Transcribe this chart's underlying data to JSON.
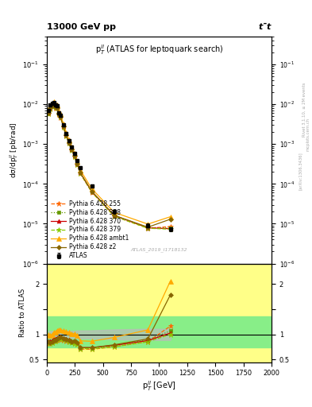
{
  "title_top": "13000 GeV pp",
  "title_top_right": "t¯t",
  "plot_title": "p$_T^{ll}$ (ATLAS for leptoquark search)",
  "xlabel": "p$_T^{ll}$ [GeV]",
  "ylabel_main": "dσ/dp$_T^{ll}$ [pb/rad]",
  "ylabel_ratio": "Ratio to ATLAS",
  "watermark": "ATLAS_2019_I1718132",
  "rivet_label": "Rivet 3.1.10, ≥ 2M events",
  "arxiv_label": "[arXiv:1306.3436]",
  "mcplots_label": "mcplots.cern.ch",
  "atlas_x": [
    17,
    32,
    47,
    62,
    77,
    92,
    107,
    122,
    147,
    172,
    197,
    222,
    247,
    272,
    297,
    400,
    600,
    900,
    1100
  ],
  "atlas_y": [
    0.007,
    0.0095,
    0.0105,
    0.011,
    0.0095,
    0.009,
    0.0062,
    0.0052,
    0.003,
    0.00185,
    0.00122,
    0.00085,
    0.00058,
    0.00038,
    0.00026,
    8.8e-05,
    2.05e-05,
    9e-06,
    7.3e-06
  ],
  "atlas_yerr": [
    0.0005,
    0.0006,
    0.0007,
    0.0007,
    0.0006,
    0.0006,
    0.0004,
    0.0004,
    0.0002,
    0.00013,
    9e-05,
    6e-05,
    4e-05,
    3e-05,
    2e-05,
    7e-06,
    2e-06,
    1e-06,
    8e-07
  ],
  "p255_x": [
    17,
    32,
    47,
    62,
    77,
    92,
    107,
    122,
    147,
    172,
    197,
    222,
    247,
    272,
    297,
    400,
    600,
    900,
    1100
  ],
  "p255_y": [
    0.0058,
    0.0078,
    0.0088,
    0.0095,
    0.0082,
    0.008,
    0.0056,
    0.0047,
    0.00265,
    0.00162,
    0.00105,
    0.00072,
    0.00048,
    0.000305,
    0.000185,
    6.2e-05,
    1.55e-05,
    7.7e-06,
    8.5e-06
  ],
  "p358_x": [
    17,
    32,
    47,
    62,
    77,
    92,
    107,
    122,
    147,
    172,
    197,
    222,
    247,
    272,
    297,
    400,
    600,
    900,
    1100
  ],
  "p358_y": [
    0.006,
    0.008,
    0.009,
    0.0097,
    0.0084,
    0.0082,
    0.0058,
    0.0049,
    0.00275,
    0.00168,
    0.00108,
    0.00073,
    0.0005,
    0.000315,
    0.00019,
    6.4e-05,
    1.6e-05,
    8e-06,
    7.8e-06
  ],
  "p370_x": [
    17,
    32,
    47,
    62,
    77,
    92,
    107,
    122,
    147,
    172,
    197,
    222,
    247,
    272,
    297,
    400,
    600,
    900,
    1100
  ],
  "p370_y": [
    0.0061,
    0.0082,
    0.0093,
    0.01,
    0.0087,
    0.0084,
    0.0059,
    0.005,
    0.0028,
    0.0017,
    0.00109,
    0.00074,
    0.0005,
    0.00032,
    0.000192,
    6.5e-05,
    1.61e-05,
    7.9e-06,
    7.5e-06
  ],
  "p379_x": [
    17,
    32,
    47,
    62,
    77,
    92,
    107,
    122,
    147,
    172,
    197,
    222,
    247,
    272,
    297,
    400,
    600,
    900,
    1100
  ],
  "p379_y": [
    0.0059,
    0.0078,
    0.0088,
    0.0096,
    0.0083,
    0.0081,
    0.0057,
    0.0048,
    0.00269,
    0.00163,
    0.00105,
    0.00071,
    0.00048,
    0.000308,
    0.000187,
    6.3e-05,
    1.55e-05,
    7.7e-06,
    7.3e-06
  ],
  "pambt1_x": [
    17,
    32,
    47,
    62,
    77,
    92,
    107,
    122,
    147,
    172,
    197,
    222,
    247,
    272,
    297,
    400,
    600,
    900,
    1100
  ],
  "pambt1_y": [
    0.007,
    0.0093,
    0.0105,
    0.0114,
    0.0099,
    0.0097,
    0.0068,
    0.0057,
    0.00322,
    0.00196,
    0.00127,
    0.00086,
    0.00059,
    0.000375,
    0.000227,
    7.6e-05,
    1.93e-05,
    9.8e-06,
    1.5e-05
  ],
  "pz2_x": [
    17,
    32,
    47,
    62,
    77,
    92,
    107,
    122,
    147,
    172,
    197,
    222,
    247,
    272,
    297,
    400,
    600,
    900,
    1100
  ],
  "pz2_y": [
    0.006,
    0.008,
    0.009,
    0.0097,
    0.0084,
    0.0082,
    0.0058,
    0.0049,
    0.00275,
    0.00168,
    0.00108,
    0.00073,
    0.0005,
    0.000316,
    0.000192,
    6.5e-05,
    1.63e-05,
    8.2e-06,
    1.3e-05
  ],
  "colors": {
    "atlas": "#000000",
    "p255": "#ff6600",
    "p358": "#669900",
    "p370": "#cc0000",
    "p379": "#88cc00",
    "pambt1": "#ffaa00",
    "pz2": "#886600"
  },
  "bg_yellow": "#ffff88",
  "bg_green": "#88ee88",
  "ylim_main": [
    1e-06,
    0.5
  ],
  "ylim_ratio": [
    0.45,
    2.4
  ],
  "xlim": [
    0,
    2000
  ],
  "ratio_yticks": [
    0.5,
    1.0,
    1.5,
    2.0
  ],
  "ratio_yticklabels": [
    "0.5",
    "1",
    "",
    "2"
  ]
}
